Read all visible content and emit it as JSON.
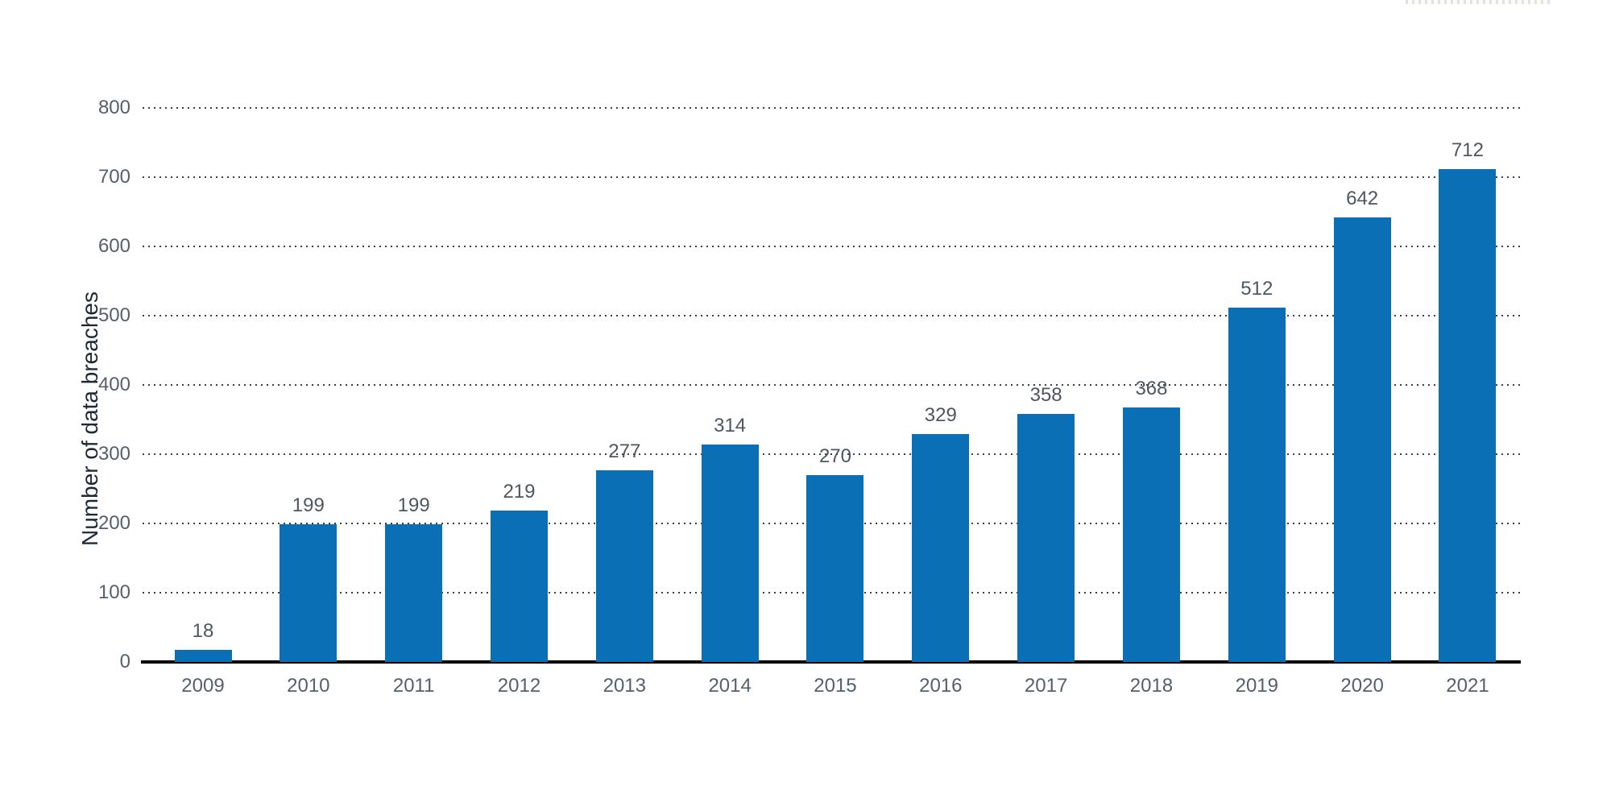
{
  "chart_data": {
    "type": "bar",
    "title": "",
    "xlabel": "",
    "ylabel": "Number of data breaches",
    "categories": [
      "2009",
      "2010",
      "2011",
      "2012",
      "2013",
      "2014",
      "2015",
      "2016",
      "2017",
      "2018",
      "2019",
      "2020",
      "2021"
    ],
    "values": [
      18,
      199,
      199,
      219,
      277,
      314,
      270,
      329,
      358,
      368,
      512,
      642,
      712
    ],
    "value_labels": [
      "18",
      "199",
      "199",
      "219",
      "277",
      "314",
      "270",
      "329",
      "358",
      "368",
      "512",
      "642",
      "712"
    ],
    "ylim": [
      0,
      800
    ],
    "yticks": [
      0,
      100,
      200,
      300,
      400,
      500,
      600,
      700,
      800
    ],
    "ytick_labels": [
      "0",
      "100",
      "200",
      "300",
      "400",
      "500",
      "600",
      "700",
      "800"
    ],
    "grid": "horizontal-dotted",
    "legend": "none",
    "bar_color": "#0a6fb5",
    "axis_color": "#000000",
    "gridline_color": "#3f3f3f",
    "tick_text_color": "#55606b",
    "value_text_color": "#4d5761",
    "ylabel_text_color": "#1c2a38",
    "background_color": "#ffffff"
  }
}
